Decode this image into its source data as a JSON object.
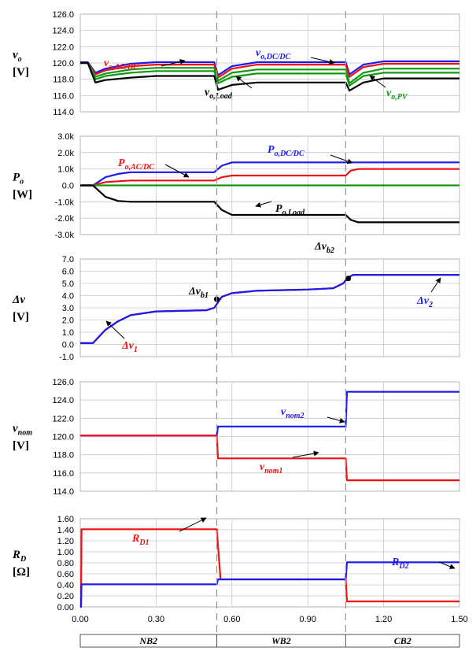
{
  "modes": [
    "NB2",
    "WB2",
    "CB2"
  ],
  "colors": {
    "red": "#ee1111",
    "blue": "#1a1aee",
    "green": "#119911",
    "black": "#000000",
    "grid": "#c8c8c8"
  },
  "x_ticks": [
    "0.00",
    "0.30",
    "0.60",
    "0.90",
    "1.20",
    "1.50"
  ],
  "chart_data": [
    {
      "type": "line",
      "ylabel": "v",
      "ylabel_sub": "o",
      "yunit": "[V]",
      "ylim": [
        114,
        126
      ],
      "xlim": [
        0,
        1.5
      ],
      "y_ticks": [
        "126.0",
        "124.0",
        "122.0",
        "120.0",
        "118.0",
        "116.0",
        "114.0"
      ],
      "series": [
        {
          "name": "vo,DC/DC",
          "color": "blue",
          "points": [
            [
              0,
              120.1
            ],
            [
              0.03,
              120.1
            ],
            [
              0.06,
              118.8
            ],
            [
              0.1,
              119.3
            ],
            [
              0.2,
              119.9
            ],
            [
              0.3,
              120.1
            ],
            [
              0.53,
              120.1
            ],
            [
              0.545,
              118.5
            ],
            [
              0.6,
              119.6
            ],
            [
              0.7,
              120.1
            ],
            [
              1.05,
              120.1
            ],
            [
              1.065,
              118.6
            ],
            [
              1.12,
              119.8
            ],
            [
              1.2,
              120.2
            ],
            [
              1.5,
              120.2
            ]
          ]
        },
        {
          "name": "vo,AC/DC",
          "color": "red",
          "points": [
            [
              0,
              120.0
            ],
            [
              0.03,
              120.0
            ],
            [
              0.06,
              118.6
            ],
            [
              0.1,
              119.1
            ],
            [
              0.2,
              119.6
            ],
            [
              0.3,
              119.8
            ],
            [
              0.53,
              119.8
            ],
            [
              0.545,
              118.2
            ],
            [
              0.6,
              119.3
            ],
            [
              0.7,
              119.8
            ],
            [
              1.05,
              119.8
            ],
            [
              1.065,
              118.3
            ],
            [
              1.12,
              119.5
            ],
            [
              1.2,
              119.9
            ],
            [
              1.5,
              119.9
            ]
          ]
        },
        {
          "name": "",
          "color": "green",
          "points": [
            [
              0,
              120.0
            ],
            [
              0.03,
              120.0
            ],
            [
              0.06,
              118.3
            ],
            [
              0.1,
              118.7
            ],
            [
              0.2,
              119.2
            ],
            [
              0.3,
              119.4
            ],
            [
              0.53,
              119.4
            ],
            [
              0.545,
              117.8
            ],
            [
              0.6,
              118.8
            ],
            [
              0.7,
              119.2
            ],
            [
              1.05,
              119.2
            ],
            [
              1.065,
              117.5
            ],
            [
              1.12,
              118.8
            ],
            [
              1.2,
              119.3
            ],
            [
              1.5,
              119.3
            ]
          ]
        },
        {
          "name": "vo,PV",
          "color": "green",
          "points": [
            [
              0,
              120.0
            ],
            [
              0.03,
              120.0
            ],
            [
              0.06,
              118.0
            ],
            [
              0.1,
              118.4
            ],
            [
              0.2,
              118.8
            ],
            [
              0.3,
              119.0
            ],
            [
              0.53,
              119.0
            ],
            [
              0.545,
              117.5
            ],
            [
              0.6,
              118.3
            ],
            [
              0.7,
              118.7
            ],
            [
              1.05,
              118.7
            ],
            [
              1.065,
              117.2
            ],
            [
              1.12,
              118.4
            ],
            [
              1.2,
              118.8
            ],
            [
              1.5,
              118.8
            ]
          ]
        },
        {
          "name": "vo,Load",
          "color": "black",
          "points": [
            [
              0,
              120.0
            ],
            [
              0.03,
              120.0
            ],
            [
              0.06,
              117.6
            ],
            [
              0.1,
              117.9
            ],
            [
              0.2,
              118.2
            ],
            [
              0.3,
              118.4
            ],
            [
              0.53,
              118.4
            ],
            [
              0.545,
              116.7
            ],
            [
              0.6,
              117.3
            ],
            [
              0.7,
              117.6
            ],
            [
              1.05,
              117.6
            ],
            [
              1.065,
              116.6
            ],
            [
              1.12,
              117.6
            ],
            [
              1.2,
              118.1
            ],
            [
              1.5,
              118.1
            ]
          ]
        }
      ],
      "annotations": [
        {
          "text": "v",
          "sub": "o,AC/DC",
          "color": "red"
        },
        {
          "text": "v",
          "sub": "o,DC/DC",
          "color": "blue"
        },
        {
          "text": "v",
          "sub": "o,Load",
          "color": "black"
        },
        {
          "text": "v",
          "sub": "o,PV",
          "color": "green"
        }
      ]
    },
    {
      "type": "line",
      "ylabel": "P",
      "ylabel_sub": "o",
      "yunit": "[W]",
      "ylim": [
        -3000,
        3000
      ],
      "xlim": [
        0,
        1.5
      ],
      "y_ticks": [
        "3.0k",
        "2.0k",
        "1.0k",
        "0.0",
        "-1.0k",
        "-2.0k",
        "-3.0k"
      ],
      "series": [
        {
          "name": "Po,DC/DC",
          "color": "blue",
          "points": [
            [
              0,
              0
            ],
            [
              0.05,
              0
            ],
            [
              0.1,
              500
            ],
            [
              0.15,
              700
            ],
            [
              0.2,
              800
            ],
            [
              0.53,
              800
            ],
            [
              0.56,
              1200
            ],
            [
              0.6,
              1400
            ],
            [
              1.05,
              1400
            ],
            [
              1.07,
              1400
            ],
            [
              1.5,
              1400
            ]
          ]
        },
        {
          "name": "Po,AC/DC",
          "color": "red",
          "points": [
            [
              0,
              0
            ],
            [
              0.05,
              0
            ],
            [
              0.1,
              200
            ],
            [
              0.2,
              300
            ],
            [
              0.53,
              300
            ],
            [
              0.56,
              500
            ],
            [
              0.6,
              600
            ],
            [
              1.05,
              600
            ],
            [
              1.07,
              900
            ],
            [
              1.1,
              1000
            ],
            [
              1.5,
              1000
            ]
          ]
        },
        {
          "name": "",
          "color": "green",
          "points": [
            [
              0,
              0
            ],
            [
              1.5,
              0
            ]
          ]
        },
        {
          "name": "Po,Load",
          "color": "black",
          "points": [
            [
              0,
              0
            ],
            [
              0.05,
              0
            ],
            [
              0.1,
              -700
            ],
            [
              0.15,
              -950
            ],
            [
              0.2,
              -1000
            ],
            [
              0.53,
              -1000
            ],
            [
              0.56,
              -1500
            ],
            [
              0.6,
              -1800
            ],
            [
              1.05,
              -1800
            ],
            [
              1.07,
              -2100
            ],
            [
              1.1,
              -2250
            ],
            [
              1.5,
              -2250
            ]
          ]
        }
      ],
      "annotations": [
        {
          "text": "P",
          "sub": "o,AC/DC",
          "color": "red"
        },
        {
          "text": "P",
          "sub": "o,DC/DC",
          "color": "blue"
        },
        {
          "text": "P",
          "sub": "o,Load",
          "color": "black"
        }
      ]
    },
    {
      "type": "line",
      "ylabel": "Δv",
      "ylabel_sub": "",
      "yunit": "[V]",
      "ylim": [
        -1,
        7
      ],
      "xlim": [
        0,
        1.5
      ],
      "y_ticks": [
        "7.0",
        "6.0",
        "5.0",
        "4.0",
        "3.0",
        "2.0",
        "1.0",
        "0.0",
        "-1.0"
      ],
      "series": [
        {
          "name": "Δv1",
          "color": "red",
          "points": [
            [
              0,
              0.1
            ],
            [
              0.05,
              0.1
            ],
            [
              0.1,
              1.2
            ],
            [
              0.15,
              1.9
            ],
            [
              0.2,
              2.4
            ],
            [
              0.3,
              2.7
            ],
            [
              0.5,
              2.8
            ],
            [
              0.53,
              3.0
            ],
            [
              0.56,
              3.9
            ],
            [
              0.6,
              4.2
            ],
            [
              0.7,
              4.4
            ],
            [
              0.9,
              4.5
            ],
            [
              1.0,
              4.6
            ],
            [
              1.04,
              5.0
            ],
            [
              1.06,
              5.5
            ],
            [
              1.08,
              5.7
            ],
            [
              1.5,
              5.7
            ]
          ]
        },
        {
          "name": "Δv2",
          "color": "blue",
          "points": [
            [
              0,
              0.1
            ],
            [
              0.05,
              0.1
            ],
            [
              0.1,
              1.2
            ],
            [
              0.15,
              1.9
            ],
            [
              0.2,
              2.4
            ],
            [
              0.3,
              2.7
            ],
            [
              0.5,
              2.8
            ],
            [
              0.53,
              3.0
            ],
            [
              0.56,
              3.9
            ],
            [
              0.6,
              4.2
            ],
            [
              0.7,
              4.4
            ],
            [
              0.9,
              4.5
            ],
            [
              1.0,
              4.6
            ],
            [
              1.04,
              5.0
            ],
            [
              1.06,
              5.5
            ],
            [
              1.08,
              5.7
            ],
            [
              1.5,
              5.7
            ]
          ]
        }
      ],
      "markers": [
        {
          "x": 0.54,
          "y": 3.7,
          "text": "Δv",
          "sub": "b1"
        },
        {
          "x": 1.06,
          "y": 5.4,
          "text": "Δv",
          "sub": "b2"
        }
      ],
      "annotations": [
        {
          "text": "Δv",
          "sub": "1",
          "color": "red"
        },
        {
          "text": "Δv",
          "sub": "2",
          "color": "blue"
        }
      ]
    },
    {
      "type": "line",
      "ylabel": "v",
      "ylabel_sub": "nom",
      "yunit": "[V]",
      "ylim": [
        114,
        126
      ],
      "xlim": [
        0,
        1.5
      ],
      "y_ticks": [
        "126.0",
        "124.0",
        "122.0",
        "120.0",
        "118.0",
        "116.0",
        "114.0"
      ],
      "series": [
        {
          "name": "vnom2",
          "color": "blue",
          "points": [
            [
              0,
              120.1
            ],
            [
              0.54,
              120.1
            ],
            [
              0.545,
              121.1
            ],
            [
              1.05,
              121.1
            ],
            [
              1.055,
              124.9
            ],
            [
              1.5,
              124.9
            ]
          ]
        },
        {
          "name": "vnom1",
          "color": "red",
          "points": [
            [
              0,
              120.1
            ],
            [
              0.54,
              120.1
            ],
            [
              0.545,
              117.6
            ],
            [
              1.05,
              117.6
            ],
            [
              1.055,
              115.2
            ],
            [
              1.5,
              115.2
            ]
          ]
        }
      ],
      "annotations": [
        {
          "text": "v",
          "sub": "nom2",
          "color": "blue"
        },
        {
          "text": "v",
          "sub": "nom1",
          "color": "red"
        }
      ]
    },
    {
      "type": "line",
      "ylabel": "R",
      "ylabel_sub": "D",
      "yunit": "[Ω]",
      "ylim": [
        0,
        1.6
      ],
      "xlim": [
        0,
        1.5
      ],
      "y_ticks": [
        "1.60",
        "1.40",
        "1.20",
        "1.00",
        "0.80",
        "0.60",
        "0.40",
        "0.20",
        "0.00"
      ],
      "series": [
        {
          "name": "RD1",
          "color": "red",
          "points": [
            [
              0,
              0
            ],
            [
              0.003,
              0
            ],
            [
              0.005,
              1.41
            ],
            [
              0.54,
              1.41
            ],
            [
              0.555,
              0.5
            ],
            [
              1.05,
              0.5
            ],
            [
              1.055,
              0.1
            ],
            [
              1.5,
              0.1
            ]
          ]
        },
        {
          "name": "RD2",
          "color": "blue",
          "points": [
            [
              0,
              0
            ],
            [
              0.003,
              0
            ],
            [
              0.005,
              0.41
            ],
            [
              0.54,
              0.41
            ],
            [
              0.545,
              0.5
            ],
            [
              1.05,
              0.5
            ],
            [
              1.055,
              0.81
            ],
            [
              1.5,
              0.81
            ]
          ]
        }
      ],
      "annotations": [
        {
          "text": "R",
          "sub": "D1",
          "color": "red"
        },
        {
          "text": "R",
          "sub": "D2",
          "color": "blue"
        }
      ]
    }
  ]
}
